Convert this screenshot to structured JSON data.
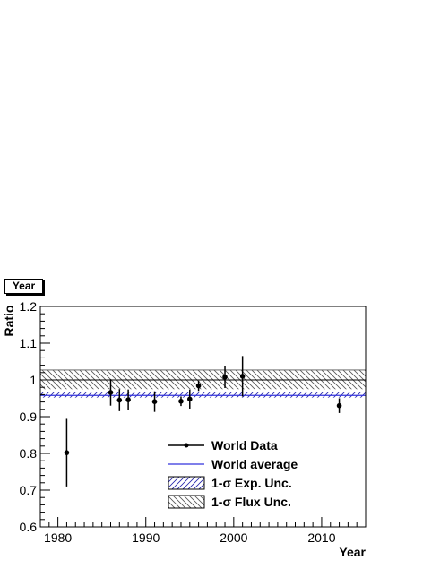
{
  "chart_data": {
    "type": "scatter",
    "title": "Year",
    "xlabel": "Year",
    "ylabel": "Ratio",
    "xlim": [
      1978,
      2015
    ],
    "ylim": [
      0.6,
      1.2
    ],
    "x_ticks": [
      "1980",
      "1990",
      "2000",
      "2010"
    ],
    "y_ticks": [
      "0.6",
      "0.7",
      "0.8",
      "0.9",
      "1",
      "1.1",
      "1.2"
    ],
    "series": [
      {
        "name": "World Data",
        "points": [
          {
            "x": 1981,
            "y": 0.802,
            "err": 0.092
          },
          {
            "x": 1986,
            "y": 0.966,
            "err": 0.036
          },
          {
            "x": 1987,
            "y": 0.945,
            "err": 0.03
          },
          {
            "x": 1988,
            "y": 0.946,
            "err": 0.028
          },
          {
            "x": 1991,
            "y": 0.941,
            "err": 0.028
          },
          {
            "x": 1994,
            "y": 0.942,
            "err": 0.013
          },
          {
            "x": 1995,
            "y": 0.948,
            "err": 0.026
          },
          {
            "x": 1996,
            "y": 0.984,
            "err": 0.014
          },
          {
            "x": 1999,
            "y": 1.008,
            "err": 0.03
          },
          {
            "x": 2001,
            "y": 1.01,
            "err": 0.055
          },
          {
            "x": 2012,
            "y": 0.93,
            "err": 0.02
          }
        ]
      }
    ],
    "world_average": {
      "name": "World average",
      "value": 0.958,
      "color": "#3333dd"
    },
    "bands": [
      {
        "name": "1-σ Exp. Unc.",
        "lo": 0.952,
        "hi": 0.966,
        "color": "#2222aa"
      },
      {
        "name": "1-σ Flux Unc.",
        "lo": 0.975,
        "hi": 1.027,
        "color": "#555555"
      }
    ],
    "reference_line": 1.0,
    "legend": {
      "placement": "bottom-center",
      "labels": [
        "World Data",
        "World average",
        "1-σ Exp. Unc.",
        "1-σ Flux Unc."
      ]
    }
  }
}
